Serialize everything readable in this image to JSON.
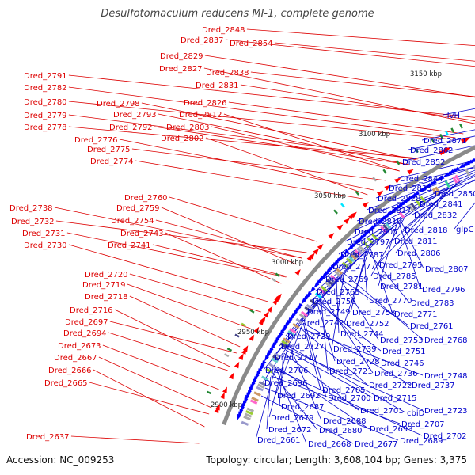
{
  "header": {
    "title": "Desulfotomaculum reducens MI-1, complete genome"
  },
  "footer": {
    "accession": "Accession: NC_009253",
    "summary": "Topology: circular; Length: 3,608,104 bp; Genes: 3,375"
  },
  "colors": {
    "backbone": "#8a8a8a",
    "forward_strand": "#ff0000",
    "reverse_strand": "#0000ff",
    "left_label": "#dd0000",
    "right_label": "#0000cc"
  },
  "ruler": [
    "3150 kbp",
    "3100 kbp",
    "3050 kbp",
    "3000 kbp",
    "2950 kbp",
    "2900 kbp"
  ],
  "left_labels": [
    "Dred_2848",
    "Dred_2854",
    "Dred_2837",
    "Dred_2829",
    "Dred_2827",
    "Dred_2838",
    "Dred_2831",
    "Dred_2791",
    "Dred_2782",
    "Dred_2798",
    "Dred_2826",
    "Dred_2780",
    "Dred_2779",
    "Dred_2793",
    "Dred_2812",
    "Dred_2778",
    "Dred_2792",
    "Dred_2803",
    "Dred_2776",
    "Dred_2802",
    "Dred_2775",
    "Dred_2774",
    "Dred_2760",
    "Dred_2738",
    "Dred_2759",
    "Dred_2732",
    "Dred_2754",
    "Dred_2731",
    "Dred_2743",
    "Dred_2730",
    "Dred_2741",
    "Dred_2720",
    "Dred_2719",
    "Dred_2718",
    "Dred_2716",
    "Dred_2697",
    "Dred_2694",
    "Dred_2673",
    "Dred_2667",
    "Dred_2666",
    "Dred_2665",
    "Dred_2637"
  ],
  "right_labels": [
    "ilvH",
    "Dred_2871",
    "Dred_2862",
    "Dred_2852",
    "Dred_2844",
    "Dred_2835",
    "Dred_2850",
    "Dred_2828",
    "Dred_2841",
    "Dred_2817",
    "Dred_2832",
    "Dred_2810",
    "glpC",
    "Dred_2805",
    "Dred_2818",
    "Dred_2797",
    "Dred_2811",
    "Dred_2787",
    "Dred_2806",
    "Dred_2777",
    "Dred_2795",
    "Dred_2807",
    "Dred_2769",
    "Dred_2785",
    "Dred_2781",
    "Dred_2796",
    "Dred_2763",
    "Dred_2756",
    "Dred_2770",
    "Dred_2783",
    "Dred_2749",
    "Dred_2758",
    "Dred_2771",
    "Dred_2742",
    "Dred_2752",
    "Dred_2761",
    "Dred_2744",
    "Dred_2729",
    "Dred_2753",
    "Dred_2768",
    "Dred_2727",
    "Dred_2739",
    "Dred_2751",
    "Dred_2717",
    "Dred_2728",
    "Dred_2746",
    "Dred_2706",
    "Dred_2721",
    "Dred_2736",
    "Dred_2748",
    "Dred_2696",
    "Dred_2722",
    "Dred_2737",
    "Dred_2705",
    "Dred_2692",
    "Dred_2700",
    "Dred_2715",
    "Dred_2687",
    "Dred_2701",
    "Dred_2723",
    "cbiD",
    "Dred_2679",
    "Dred_2688",
    "Dred_2707",
    "Dred_2672",
    "Dred_2680",
    "Dred_2693",
    "Dred_2702",
    "Dred_2661",
    "Dred_2668",
    "Dred_2677",
    "Dred_2689"
  ]
}
